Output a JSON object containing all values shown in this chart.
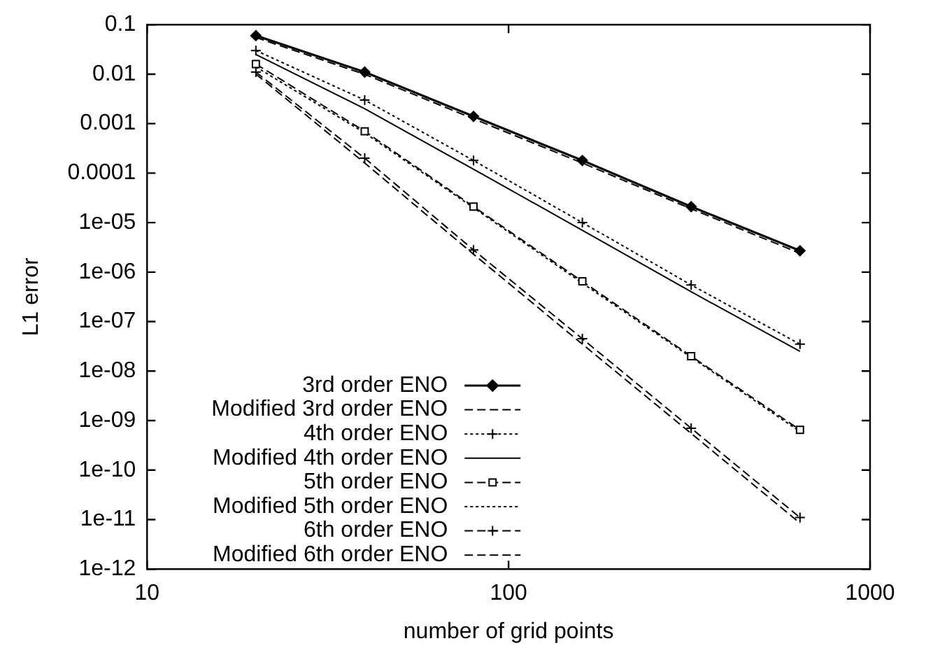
{
  "chart_data": {
    "type": "line",
    "xlabel": "number of grid points",
    "ylabel": "L1 error",
    "log": "xy",
    "legend": "bottom left",
    "x": [
      20,
      40,
      80,
      160,
      320,
      640
    ],
    "xlim": [
      10,
      1000
    ],
    "xticks": [
      10,
      100,
      1000
    ],
    "ylim": [
      1e-12,
      0.1
    ],
    "yticks": [
      0.1,
      0.01,
      0.001,
      0.0001,
      {
        "value": 1e-05,
        "label": "1e-05"
      },
      {
        "value": 1e-06,
        "label": "1e-06"
      },
      {
        "value": 1e-07,
        "label": "1e-07"
      },
      {
        "value": 1e-08,
        "label": "1e-08"
      },
      {
        "value": 1e-09,
        "label": "1e-09"
      },
      {
        "value": 1e-10,
        "label": "1e-10"
      },
      {
        "value": 1e-11,
        "label": "1e-11"
      },
      {
        "value": 1e-12,
        "label": "1e-12"
      }
    ],
    "series": [
      {
        "name": "3rd order ENO",
        "color": "#000000",
        "marker": "diamond",
        "line_style": "solid",
        "values": [
          0.06,
          0.011,
          0.0014,
          0.00018,
          2.1e-05,
          2.7e-06
        ]
      },
      {
        "name": "Modified 3rd order ENO",
        "color": "#000000",
        "marker": "none",
        "line_style": "dashed",
        "values": [
          0.055,
          0.0099,
          0.00125,
          0.00016,
          1.9e-05,
          2.4e-06
        ]
      },
      {
        "name": "4th order ENO",
        "color": "#000000",
        "marker": "cross",
        "line_style": "dotted",
        "values": [
          0.03,
          0.003,
          0.00018,
          1e-05,
          5.5e-07,
          3.5e-08
        ]
      },
      {
        "name": "Modified 4th order ENO",
        "color": "#000000",
        "marker": "none",
        "line_style": "solid",
        "values": [
          0.025,
          0.002,
          0.00012,
          7e-06,
          4e-07,
          2.5e-08
        ]
      },
      {
        "name": "5th order ENO",
        "color": "#000000",
        "marker": "square",
        "line_style": "dashed",
        "values": [
          0.016,
          0.0007,
          2.1e-05,
          6.5e-07,
          2e-08,
          6.5e-10
        ]
      },
      {
        "name": "Modified 5th order ENO",
        "color": "#000000",
        "marker": "none",
        "line_style": "dotted",
        "values": [
          0.014,
          0.00065,
          2e-05,
          6e-07,
          1.9e-08,
          6e-10
        ]
      },
      {
        "name": "6th order ENO",
        "color": "#000000",
        "marker": "cross",
        "line_style": "dashed",
        "values": [
          0.011,
          0.0002,
          2.8e-06,
          4.5e-08,
          7e-10,
          1.1e-11
        ]
      },
      {
        "name": "Modified 6th order ENO",
        "color": "#000000",
        "marker": "none",
        "line_style": "dashed",
        "values": [
          0.01,
          0.00016,
          2.3e-06,
          3.5e-08,
          5.5e-10,
          8.5e-12
        ]
      }
    ]
  }
}
